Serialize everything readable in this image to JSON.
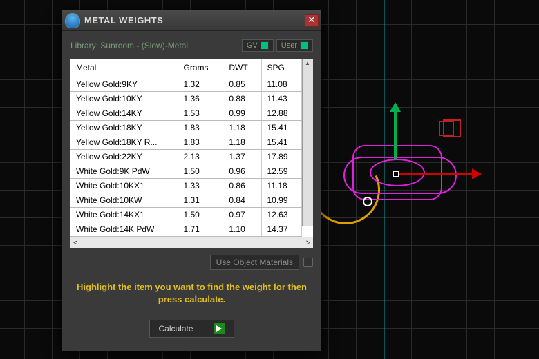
{
  "window": {
    "title": "METAL WEIGHTS"
  },
  "library": {
    "label": "Library: Sunroom - (Slow)-Metal",
    "gv_label": "GV",
    "user_label": "User"
  },
  "table": {
    "columns": [
      "Metal",
      "Grams",
      "DWT",
      "SPG"
    ],
    "rows": [
      {
        "metal": "Yellow Gold:9KY",
        "grams": "1.32",
        "dwt": "0.85",
        "spg": "11.08"
      },
      {
        "metal": "Yellow Gold:10KY",
        "grams": "1.36",
        "dwt": "0.88",
        "spg": "11.43"
      },
      {
        "metal": "Yellow Gold:14KY",
        "grams": "1.53",
        "dwt": "0.99",
        "spg": "12.88"
      },
      {
        "metal": "Yellow Gold:18KY",
        "grams": "1.83",
        "dwt": "1.18",
        "spg": "15.41"
      },
      {
        "metal": "Yellow Gold:18KY R...",
        "grams": "1.83",
        "dwt": "1.18",
        "spg": "15.41"
      },
      {
        "metal": "Yellow Gold:22KY",
        "grams": "2.13",
        "dwt": "1.37",
        "spg": "17.89"
      },
      {
        "metal": "White Gold:9K PdW",
        "grams": "1.50",
        "dwt": "0.96",
        "spg": "12.59"
      },
      {
        "metal": "White Gold:10KX1",
        "grams": "1.33",
        "dwt": "0.86",
        "spg": "11.18"
      },
      {
        "metal": "White Gold:10KW",
        "grams": "1.31",
        "dwt": "0.84",
        "spg": "10.99"
      },
      {
        "metal": "White Gold:14KX1",
        "grams": "1.50",
        "dwt": "0.97",
        "spg": "12.63"
      },
      {
        "metal": "White Gold:14K PdW",
        "grams": "1.71",
        "dwt": "1.10",
        "spg": "14.37"
      }
    ]
  },
  "buttons": {
    "use_object_materials": "Use Object Materials",
    "calculate": "Calculate"
  },
  "hint": "Highlight the item you want to find the weight for then press calculate.",
  "colors": {
    "dialog_bg": "#3a3a3a",
    "accent_green": "#00c080",
    "hint_yellow": "#e0c020",
    "magenta": "#e020e0",
    "arc_gold": "#e0a000",
    "axis_x": "#d00000",
    "axis_z": "#00b050",
    "axis_cyan": "#0aa0a0"
  }
}
